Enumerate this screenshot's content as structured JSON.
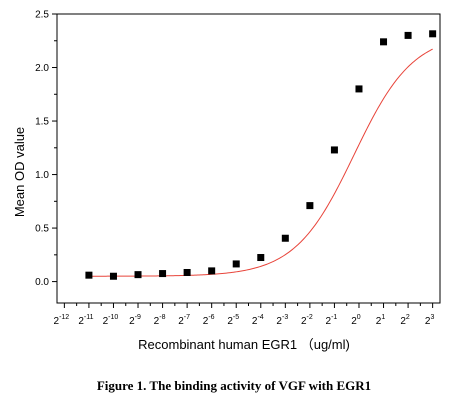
{
  "chart_data": {
    "type": "scatter",
    "title": "",
    "xlabel": "Recombinant human EGR1 （ug/ml)",
    "ylabel": "Mean OD value",
    "x_scale": "log2",
    "x_tick_base": "2",
    "x_tick_exponents": [
      -12,
      -11,
      -10,
      -9,
      -8,
      -7,
      -6,
      -5,
      -4,
      -3,
      -2,
      -1,
      0,
      1,
      2,
      3
    ],
    "x_tick_labels": [
      "-12",
      "-11",
      "-10",
      "-9",
      "-8",
      "-7",
      "-6",
      "-5",
      "-4",
      "-3",
      "-2",
      "-1",
      "0",
      "1",
      "2",
      "3"
    ],
    "y_ticks": [
      "0.0",
      "0.5",
      "1.0",
      "1.5",
      "2.0",
      "2.5"
    ],
    "ylim": [
      -0.2,
      2.5
    ],
    "xlim_exponent": [
      -12.3,
      3.3
    ],
    "fit_curve": {
      "type": "4PL sigmoid",
      "color": "#e8443a",
      "bottom": 0.05,
      "top": 2.32,
      "ec50_exponent": -0.2,
      "hill_slope": 1.2
    },
    "marker_color": "#000000",
    "series": [
      {
        "marker": "square",
        "x_exponents": [
          -11,
          -10,
          -9,
          -8,
          -7,
          -6,
          -5,
          -4,
          -3,
          -2,
          -1,
          0,
          1,
          2,
          3
        ],
        "values": [
          0.06,
          0.05,
          0.065,
          0.075,
          0.085,
          0.1,
          0.165,
          0.225,
          0.405,
          0.71,
          1.23,
          1.8,
          2.24,
          2.3,
          2.315
        ]
      }
    ]
  },
  "caption": "Figure 1. The binding activity of VGF with EGR1"
}
